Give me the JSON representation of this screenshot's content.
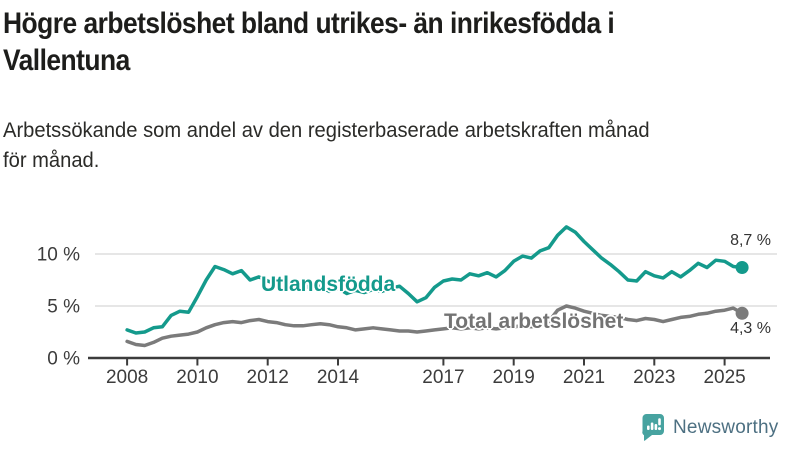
{
  "header": {
    "title": "Högre arbetslöshet bland utrikes- än inrikesfödda i Vallentuna",
    "title_lines": [
      "Högre arbetslöshet bland utrikes- än inrikesfödda i",
      "Vallentuna"
    ],
    "subtitle_lines": [
      "Arbetssökande som andel av den registerbaserade arbetskraften månad",
      "för månad."
    ]
  },
  "branding": {
    "name": "Newsworthy",
    "icon": "bar-chart-speech-bubble-icon"
  },
  "colors": {
    "teal": "#149a8c",
    "gray": "#7b7b7b",
    "gray_label": "#737373",
    "grid": "#d8d8d8",
    "axis": "#3c3c3c",
    "value_label": "#333333",
    "logo_icon": "#47a3a0",
    "logo_text": "#4d7082"
  },
  "chart_data": {
    "type": "line",
    "title": "Högre arbetslöshet bland utrikes- än inrikesfödda i Vallentuna",
    "subtitle": "Arbetssökande som andel av den registerbaserade arbetskraften månad för månad.",
    "xlabel": "",
    "ylabel": "",
    "grid": "horizontal",
    "legend_position": "inline-labels",
    "xlim": [
      2007.0,
      2026.35
    ],
    "ylim": [
      0,
      13.46
    ],
    "xticks": [
      {
        "value": 2008,
        "label": "2008"
      },
      {
        "value": 2010,
        "label": "2010"
      },
      {
        "value": 2012,
        "label": "2012"
      },
      {
        "value": 2014,
        "label": "2014"
      },
      {
        "value": 2017,
        "label": "2017"
      },
      {
        "value": 2019,
        "label": "2019"
      },
      {
        "value": 2021,
        "label": "2021"
      },
      {
        "value": 2023,
        "label": "2023"
      },
      {
        "value": 2025,
        "label": "2025"
      }
    ],
    "yticks": [
      {
        "value": 0,
        "label": "0 %"
      },
      {
        "value": 5,
        "label": "5 %"
      },
      {
        "value": 10,
        "label": "10 %"
      }
    ],
    "x": [
      2008,
      2008.25,
      2008.5,
      2008.75,
      2009,
      2009.25,
      2009.5,
      2009.75,
      2010,
      2010.25,
      2010.5,
      2010.75,
      2011,
      2011.25,
      2011.5,
      2011.75,
      2012,
      2012.25,
      2012.5,
      2012.75,
      2013,
      2013.25,
      2013.5,
      2013.75,
      2014,
      2014.25,
      2014.5,
      2014.75,
      2015,
      2015.25,
      2015.5,
      2015.75,
      2016,
      2016.25,
      2016.5,
      2016.75,
      2017,
      2017.25,
      2017.5,
      2017.75,
      2018,
      2018.25,
      2018.5,
      2018.75,
      2019,
      2019.25,
      2019.5,
      2019.75,
      2020,
      2020.25,
      2020.5,
      2020.75,
      2021,
      2021.25,
      2021.5,
      2021.75,
      2022,
      2022.25,
      2022.5,
      2022.75,
      2023,
      2023.25,
      2023.5,
      2023.75,
      2024,
      2024.25,
      2024.5,
      2024.75,
      2025,
      2025.25,
      2025.5
    ],
    "series": [
      {
        "name": "Utlandsfödda",
        "color": "#149a8c",
        "end_label": "8,7 %",
        "end_value": 8.7,
        "values": [
          2.7,
          2.4,
          2.5,
          2.9,
          3.0,
          4.1,
          4.5,
          4.4,
          5.9,
          7.5,
          8.8,
          8.5,
          8.1,
          8.4,
          7.5,
          7.8,
          7.4,
          7.1,
          7.4,
          6.9,
          7.1,
          6.6,
          6.9,
          6.4,
          6.7,
          6.2,
          6.5,
          6.3,
          6.6,
          6.4,
          6.7,
          6.9,
          6.2,
          5.4,
          5.8,
          6.8,
          7.4,
          7.6,
          7.5,
          8.1,
          7.9,
          8.2,
          7.8,
          8.4,
          9.3,
          9.8,
          9.6,
          10.3,
          10.6,
          11.8,
          12.6,
          12.1,
          11.2,
          10.4,
          9.6,
          9.0,
          8.3,
          7.5,
          7.4,
          8.3,
          7.9,
          7.7,
          8.3,
          7.8,
          8.4,
          9.1,
          8.7,
          9.4,
          9.3,
          8.8,
          8.7
        ]
      },
      {
        "name": "Total arbetslöshet",
        "color": "#7b7b7b",
        "end_label": "4,3 %",
        "end_value": 4.3,
        "values": [
          1.6,
          1.3,
          1.2,
          1.5,
          1.9,
          2.1,
          2.2,
          2.3,
          2.5,
          2.9,
          3.2,
          3.4,
          3.5,
          3.4,
          3.6,
          3.7,
          3.5,
          3.4,
          3.2,
          3.1,
          3.1,
          3.2,
          3.3,
          3.2,
          3.0,
          2.9,
          2.7,
          2.8,
          2.9,
          2.8,
          2.7,
          2.6,
          2.6,
          2.5,
          2.6,
          2.7,
          2.8,
          2.9,
          2.8,
          2.9,
          2.8,
          2.9,
          2.8,
          2.9,
          3.0,
          3.1,
          3.0,
          3.2,
          3.5,
          4.6,
          5.0,
          4.8,
          4.5,
          4.3,
          4.1,
          4.0,
          3.9,
          3.7,
          3.6,
          3.8,
          3.7,
          3.5,
          3.7,
          3.9,
          4.0,
          4.2,
          4.3,
          4.5,
          4.6,
          4.8,
          4.3
        ]
      }
    ]
  }
}
